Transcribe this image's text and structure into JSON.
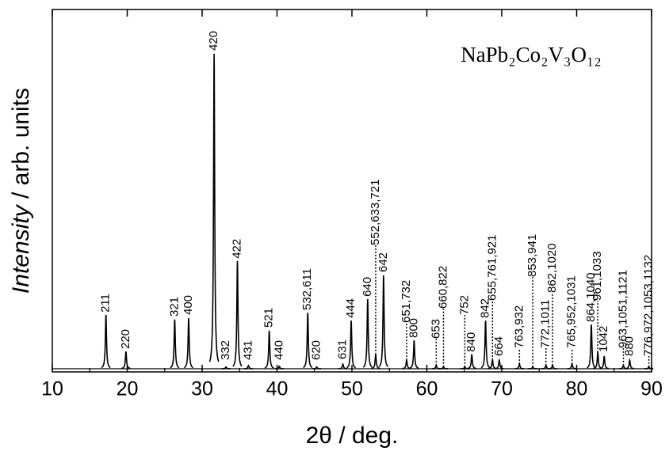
{
  "chart_data": {
    "type": "peaks",
    "title": "NaPb₂Co₂V₃O₁₂",
    "x_label": "2θ / deg.",
    "y_label": "Intensity / arb. units",
    "color": "#000000",
    "xlim": [
      10,
      90
    ],
    "xticks": [
      10,
      20,
      30,
      40,
      50,
      60,
      70,
      80,
      90
    ],
    "ylim": [
      0,
      100
    ],
    "x": [
      17.16,
      19.83,
      26.34,
      28.2,
      31.6,
      33.19,
      34.71,
      36.18,
      38.96,
      40.3,
      44.1,
      45.3,
      48.79,
      49.9,
      52.1,
      53.17,
      54.22,
      57.3,
      58.3,
      61.25,
      62.22,
      65.07,
      66.0,
      67.84,
      68.76,
      69.67,
      72.36,
      74.14,
      75.9,
      76.78,
      79.38,
      81.96,
      82.82,
      83.68,
      86.24,
      87.08,
      89.64
    ],
    "values": [
      15.0,
      4.8,
      13.7,
      14.1,
      87.7,
      0.5,
      30.0,
      0.9,
      10.6,
      0.7,
      15.6,
      0.5,
      1.3,
      13.4,
      19.4,
      4.0,
      26.0,
      2.4,
      7.9,
      0.9,
      0.5,
      0.5,
      4.0,
      13.4,
      2.4,
      2.4,
      1.3,
      0.5,
      0.9,
      0.9,
      1.3,
      12.3,
      4.6,
      3.5,
      0.9,
      2.4,
      0.5
    ],
    "labels": [
      "211",
      "220",
      "321",
      "400",
      "420",
      "332",
      "422",
      "431",
      "521",
      "440",
      "532,611",
      "620",
      "631",
      "444",
      "640",
      "552,633,721",
      "642",
      "651,732",
      "800",
      "653",
      "660,822",
      "752",
      "840",
      "842",
      "655,761,921",
      "664",
      "763,932",
      "853,941",
      "772,1011",
      "862,1020",
      "765,952,1031",
      "864,1040",
      "961,1033",
      "1042",
      "963,1051,1121",
      "880",
      "776,972,1053,1132"
    ]
  }
}
